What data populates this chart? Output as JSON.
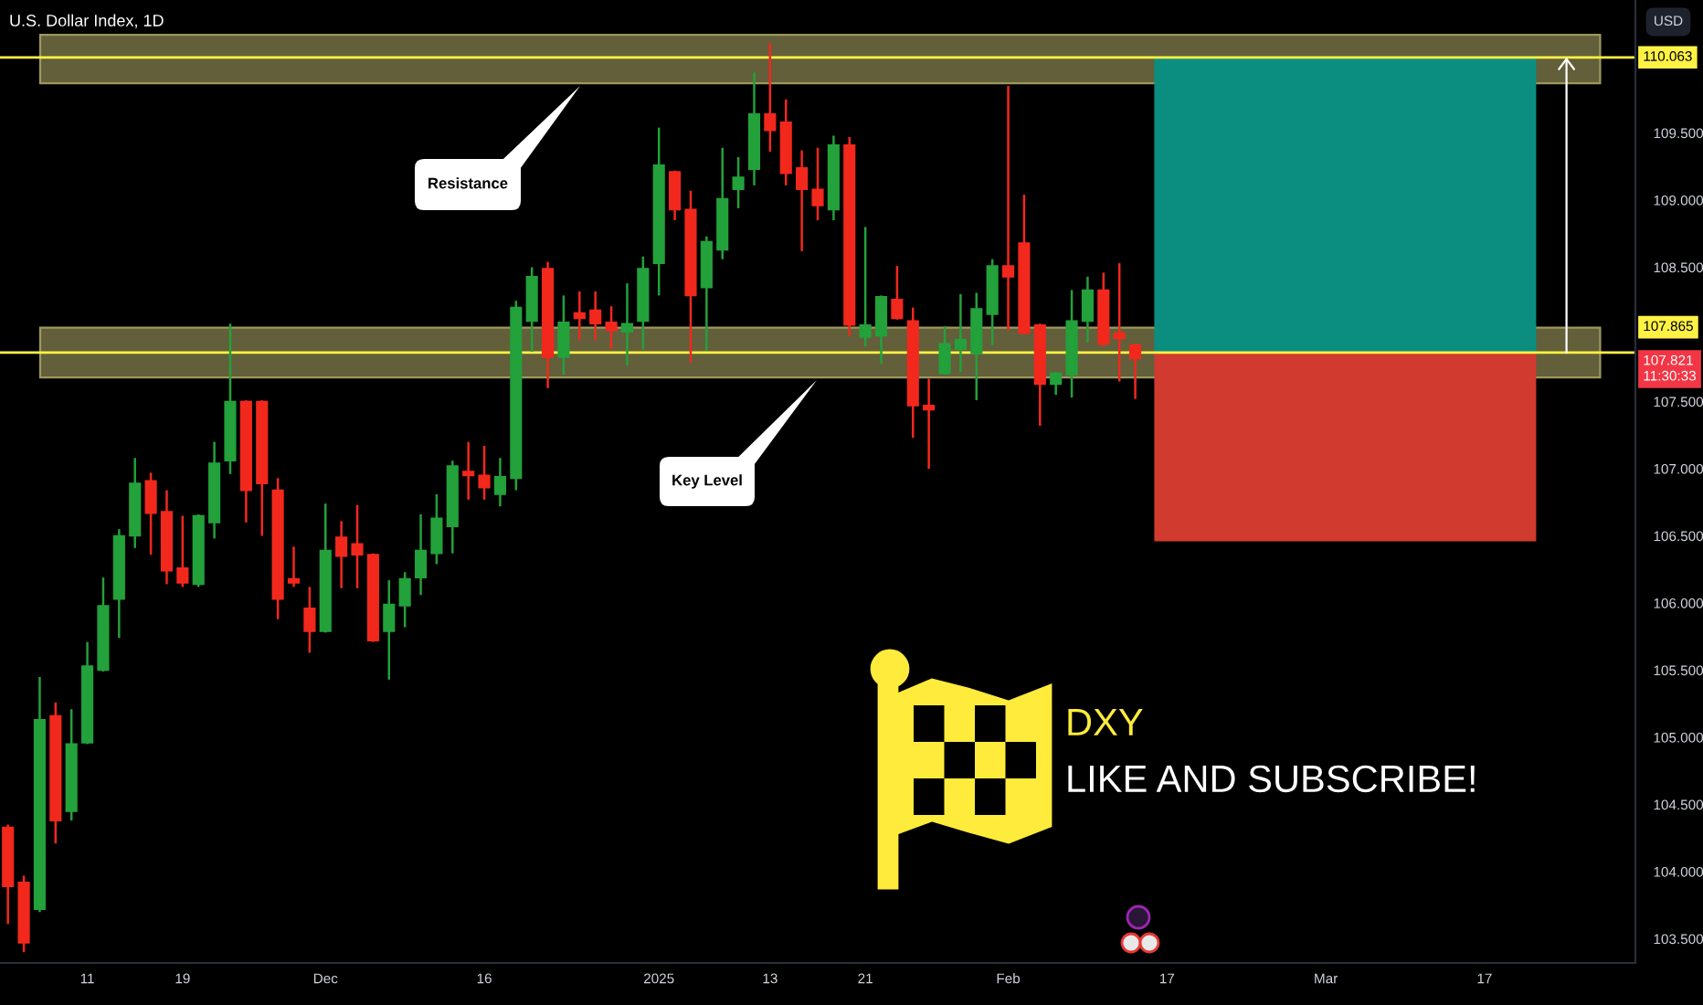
{
  "chart_data": {
    "type": "candlestick",
    "title": "U.S. Dollar Index, 1D",
    "categories": [
      null,
      null,
      null,
      null,
      null,
      "11",
      null,
      null,
      null,
      null,
      null,
      "19",
      null,
      null,
      null,
      null,
      null,
      null,
      null,
      null,
      "Dec",
      null,
      null,
      null,
      null,
      null,
      null,
      null,
      null,
      null,
      "16",
      null,
      null,
      null,
      null,
      null,
      null,
      null,
      null,
      null,
      null,
      "2025",
      null,
      null,
      null,
      null,
      null,
      null,
      "13",
      null,
      null,
      null,
      null,
      null,
      "21",
      null,
      null,
      null,
      null,
      null,
      null,
      null,
      null,
      "Feb",
      null,
      null,
      null,
      null,
      null,
      null,
      null,
      null,
      null,
      "17",
      null,
      null,
      null,
      null,
      null,
      null,
      null,
      null,
      null,
      "Mar",
      null,
      null,
      null,
      null,
      null,
      null,
      null,
      null,
      null,
      "17",
      null,
      null,
      null,
      null,
      null,
      null,
      null,
      null,
      null
    ],
    "ohlc": [
      [
        104.33,
        104.35,
        103.61,
        103.89
      ],
      [
        103.92,
        103.97,
        103.4,
        103.47
      ],
      [
        103.72,
        105.45,
        103.7,
        105.13
      ],
      [
        105.16,
        105.26,
        104.21,
        104.38
      ],
      [
        104.45,
        105.21,
        104.38,
        104.95
      ],
      [
        104.96,
        105.71,
        104.95,
        105.53
      ],
      [
        105.5,
        106.19,
        105.49,
        105.98
      ],
      [
        106.03,
        106.55,
        105.74,
        106.5
      ],
      [
        106.5,
        107.08,
        106.41,
        106.89
      ],
      [
        106.91,
        106.97,
        106.36,
        106.67
      ],
      [
        106.68,
        106.84,
        106.14,
        106.24
      ],
      [
        106.26,
        106.65,
        106.12,
        106.15
      ],
      [
        106.14,
        106.66,
        106.12,
        106.65
      ],
      [
        106.6,
        107.2,
        106.48,
        107.04
      ],
      [
        107.06,
        108.08,
        106.96,
        107.5
      ],
      [
        107.5,
        107.51,
        106.6,
        106.84
      ],
      [
        107.5,
        107.51,
        106.5,
        106.89
      ],
      [
        106.84,
        106.93,
        105.88,
        106.03
      ],
      [
        106.18,
        106.42,
        106.12,
        106.15
      ],
      [
        105.96,
        106.12,
        105.63,
        105.79
      ],
      [
        105.79,
        106.74,
        105.78,
        106.39
      ],
      [
        106.49,
        106.61,
        106.11,
        106.35
      ],
      [
        106.44,
        106.73,
        106.11,
        106.36
      ],
      [
        106.36,
        106.37,
        105.71,
        105.72
      ],
      [
        105.79,
        106.17,
        105.43,
        105.99
      ],
      [
        105.98,
        106.23,
        105.82,
        106.18
      ],
      [
        106.19,
        106.66,
        106.06,
        106.39
      ],
      [
        106.37,
        106.81,
        106.29,
        106.63
      ],
      [
        106.57,
        107.06,
        106.37,
        107.02
      ],
      [
        106.98,
        107.2,
        106.77,
        106.95
      ],
      [
        106.95,
        107.17,
        106.77,
        106.86
      ],
      [
        106.81,
        107.08,
        106.72,
        106.94
      ],
      [
        106.93,
        108.25,
        106.84,
        108.2
      ],
      [
        108.1,
        108.5,
        107.87,
        108.43
      ],
      [
        108.49,
        108.54,
        107.6,
        107.83
      ],
      [
        107.83,
        108.29,
        107.7,
        108.09
      ],
      [
        108.16,
        108.32,
        107.96,
        108.12
      ],
      [
        108.18,
        108.32,
        107.96,
        108.08
      ],
      [
        108.09,
        108.21,
        107.89,
        108.03
      ],
      [
        108.02,
        108.38,
        107.77,
        108.08
      ],
      [
        108.1,
        108.58,
        107.89,
        108.49
      ],
      [
        108.53,
        109.54,
        108.29,
        109.26
      ],
      [
        109.21,
        109.22,
        108.85,
        108.93
      ],
      [
        108.93,
        109.07,
        107.79,
        108.29
      ],
      [
        108.35,
        108.73,
        107.88,
        108.69
      ],
      [
        108.63,
        109.39,
        108.56,
        109.01
      ],
      [
        109.08,
        109.32,
        108.94,
        109.17
      ],
      [
        109.23,
        109.95,
        109.11,
        109.64
      ],
      [
        109.64,
        110.17,
        109.36,
        109.52
      ],
      [
        109.58,
        109.75,
        109.11,
        109.2
      ],
      [
        109.24,
        109.37,
        108.62,
        109.08
      ],
      [
        109.08,
        109.39,
        108.85,
        108.96
      ],
      [
        108.93,
        109.48,
        108.85,
        109.41
      ],
      [
        109.41,
        109.47,
        107.99,
        108.07
      ],
      [
        107.98,
        108.8,
        107.91,
        108.07
      ],
      [
        107.99,
        108.29,
        107.78,
        108.28
      ],
      [
        108.26,
        108.51,
        108.11,
        108.12
      ],
      [
        108.1,
        108.2,
        107.23,
        107.47
      ],
      [
        107.47,
        107.67,
        107.0,
        107.44
      ],
      [
        107.71,
        108.06,
        107.7,
        107.93
      ],
      [
        107.89,
        108.3,
        107.72,
        107.96
      ],
      [
        107.86,
        108.31,
        107.51,
        108.19
      ],
      [
        108.15,
        108.56,
        107.92,
        108.51
      ],
      [
        108.51,
        109.85,
        108.03,
        108.43
      ],
      [
        108.68,
        109.04,
        108.0,
        108.01
      ],
      [
        108.07,
        108.08,
        107.32,
        107.63
      ],
      [
        107.63,
        107.72,
        107.55,
        107.71
      ],
      [
        107.7,
        108.33,
        107.53,
        108.1
      ],
      [
        108.1,
        108.43,
        107.94,
        108.33
      ],
      [
        108.33,
        108.46,
        107.91,
        107.93
      ],
      [
        108.01,
        108.53,
        107.65,
        107.97
      ],
      [
        107.92,
        107.93,
        107.52,
        107.821
      ],
      null,
      null,
      null,
      null,
      null,
      null,
      null,
      null,
      null,
      null,
      null,
      null,
      null,
      null,
      null,
      null,
      null,
      null,
      null,
      null,
      null,
      null,
      null,
      null,
      null,
      null,
      null,
      null,
      null,
      null,
      null
    ],
    "colors": [
      "#f2281d",
      "#f2281d",
      "#23a13b",
      "#f2281d",
      "#23a13b",
      "#23a13b",
      "#23a13b",
      "#23a13b",
      "#23a13b",
      "#f2281d",
      "#f2281d",
      "#f2281d",
      "#23a13b",
      "#23a13b",
      "#23a13b",
      "#f2281d",
      "#f2281d",
      "#f2281d",
      "#f2281d",
      "#f2281d",
      "#23a13b",
      "#f2281d",
      "#f2281d",
      "#f2281d",
      "#23a13b",
      "#23a13b",
      "#23a13b",
      "#23a13b",
      "#23a13b",
      "#f2281d",
      "#f2281d",
      "#23a13b",
      "#23a13b",
      "#23a13b",
      "#f2281d",
      "#23a13b",
      "#f2281d",
      "#f2281d",
      "#f2281d",
      "#23a13b",
      "#23a13b",
      "#23a13b",
      "#f2281d",
      "#f2281d",
      "#23a13b",
      "#23a13b",
      "#23a13b",
      "#23a13b",
      "#f2281d",
      "#f2281d",
      "#f2281d",
      "#f2281d",
      "#23a13b",
      "#f2281d",
      "#23a13b",
      "#23a13b",
      "#f2281d",
      "#f2281d",
      "#f2281d",
      "#23a13b",
      "#23a13b",
      "#23a13b",
      "#23a13b",
      "#f2281d",
      "#f2281d",
      "#f2281d",
      "#23a13b",
      "#23a13b",
      "#23a13b",
      "#f2281d",
      "#f2281d",
      "#f2281d",
      null,
      null,
      null,
      null,
      null,
      null,
      null,
      null,
      null,
      null,
      null,
      null,
      null,
      null,
      null,
      null,
      null,
      null,
      null,
      null,
      null,
      null,
      null,
      null,
      null,
      null,
      null,
      null,
      null,
      null,
      null
    ],
    "ylim": [
      103.32,
      110.49
    ],
    "yticks": [
      {
        "value": 103.5,
        "label": "103.500"
      },
      {
        "value": 104.0,
        "label": "104.000"
      },
      {
        "value": 104.5,
        "label": "104.500"
      },
      {
        "value": 105.0,
        "label": "105.000"
      },
      {
        "value": 105.5,
        "label": "105.500"
      },
      {
        "value": 106.0,
        "label": "106.000"
      },
      {
        "value": 106.5,
        "label": "106.500"
      },
      {
        "value": 107.0,
        "label": "107.000"
      },
      {
        "value": 107.5,
        "label": "107.500"
      },
      {
        "value": 108.5,
        "label": "108.500"
      },
      {
        "value": 109.0,
        "label": "109.000"
      },
      {
        "value": 109.5,
        "label": "109.500"
      }
    ],
    "bands": [
      {
        "axis": "y",
        "from": 109.87,
        "to": 110.23,
        "color": "#625f3a"
      },
      {
        "axis": "y",
        "from": 107.68,
        "to": 108.05,
        "color": "#625f3a"
      },
      {
        "axis": "y",
        "from": 107.865,
        "to": 110.063,
        "color": "#0b8e80"
      },
      {
        "axis": "y",
        "from": 106.46,
        "to": 107.865,
        "color": "#d13a2e"
      }
    ],
    "ref_lines": [
      {
        "axis": "y",
        "value": 110.063,
        "label": "110.063",
        "color": "#fff245"
      },
      {
        "axis": "y",
        "value": 107.865,
        "label": "107.865",
        "color": "#fff245"
      }
    ],
    "annotations": [
      "Resistance",
      "Key Level",
      "DXY",
      "LIKE AND SUBSCRIBE!",
      "USD",
      "107.821\n11:30:33"
    ]
  }
}
